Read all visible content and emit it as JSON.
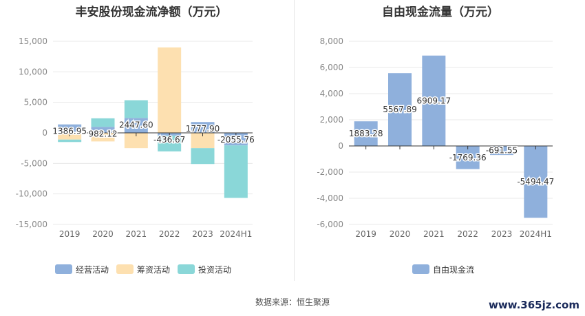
{
  "titles": {
    "left": "丰安股份现金流净额（万元）",
    "right": "自由现金流量（万元）"
  },
  "source": "数据来源：恒生聚源",
  "watermark": "www.365jz.com",
  "colors": {
    "operating": "#8fb0dc",
    "financing": "#fde0b0",
    "investing": "#8ad7d8",
    "fcf": "#8fb0dc"
  },
  "chart_data": [
    {
      "type": "bar",
      "stacked": true,
      "title": "丰安股份现金流净额（万元）",
      "categories": [
        "2019",
        "2020",
        "2021",
        "2022",
        "2023",
        "2024H1"
      ],
      "ylim": [
        -15000,
        15000
      ],
      "yticks": [
        15000,
        10000,
        5000,
        0,
        -5000,
        -10000,
        -15000
      ],
      "ytick_labels": [
        "15,000",
        "10,000",
        "5,000",
        "0",
        "-5,000",
        "-10,000",
        "-15,000"
      ],
      "grid": true,
      "legend_position": "bottom",
      "series": [
        {
          "name": "经营活动",
          "color": "#8fb0dc",
          "values": [
            1386.95,
            982.12,
            2447.6,
            -436.67,
            1777.9,
            -2055.76
          ]
        },
        {
          "name": "筹资活动",
          "color": "#fde0b0",
          "values": [
            -1100,
            -1400,
            -2500,
            14000,
            -2500,
            0
          ]
        },
        {
          "name": "投资活动",
          "color": "#8ad7d8",
          "values": [
            -400,
            1400,
            2900,
            -2600,
            -2600,
            -8600
          ]
        }
      ],
      "data_labels": [
        "1386.95",
        "982.12",
        "2447.60",
        "-436.67",
        "1777.90",
        "-2055.76"
      ]
    },
    {
      "type": "bar",
      "title": "自由现金流量（万元）",
      "categories": [
        "2019",
        "2020",
        "2021",
        "2022",
        "2023",
        "2024H1"
      ],
      "ylim": [
        -6000,
        8000
      ],
      "yticks": [
        8000,
        6000,
        4000,
        2000,
        0,
        -2000,
        -4000,
        -6000
      ],
      "ytick_labels": [
        "8,000",
        "6,000",
        "4,000",
        "2,000",
        "0",
        "-2,000",
        "-4,000",
        "-6,000"
      ],
      "grid": true,
      "legend_position": "bottom",
      "series": [
        {
          "name": "自由现金流",
          "color": "#8fb0dc",
          "values": [
            1883.28,
            5567.89,
            6909.17,
            -1769.36,
            -691.55,
            -5494.47
          ]
        }
      ],
      "data_labels": [
        "1883.28",
        "5567.89",
        "6909.17",
        "-1769.36",
        "-691.55",
        "-5494.47"
      ]
    }
  ]
}
